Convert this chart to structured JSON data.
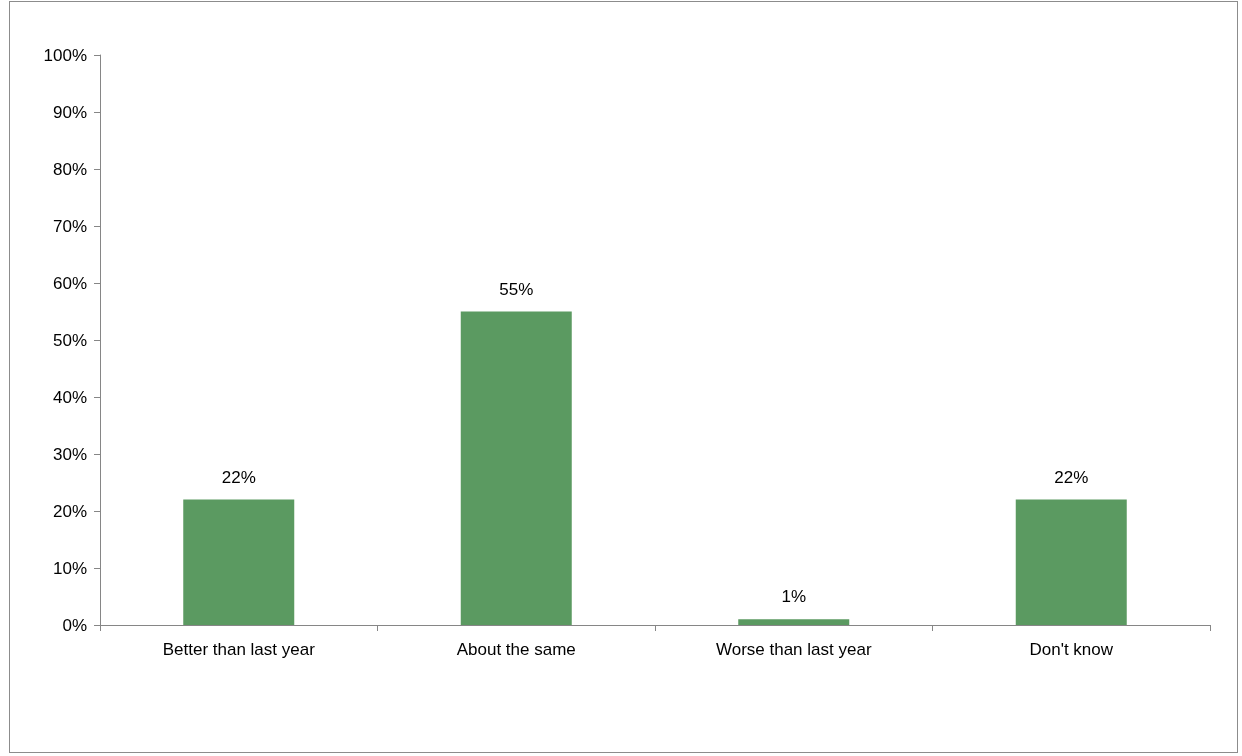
{
  "chart_data": {
    "type": "bar",
    "categories": [
      "Better than last year",
      "About the same",
      "Worse than last year",
      "Don't know"
    ],
    "values": [
      22,
      55,
      1,
      22
    ],
    "color": "#5b9a61",
    "value_labels": [
      "22%",
      "55%",
      "1%",
      "22%"
    ],
    "ylim": [
      0,
      100
    ],
    "yticks": [
      {
        "value": 0,
        "label": "0%"
      },
      {
        "value": 10,
        "label": "10%"
      },
      {
        "value": 20,
        "label": "20%"
      },
      {
        "value": 30,
        "label": "30%"
      },
      {
        "value": 40,
        "label": "40%"
      },
      {
        "value": 50,
        "label": "50%"
      },
      {
        "value": 60,
        "label": "60%"
      },
      {
        "value": 70,
        "label": "70%"
      },
      {
        "value": 80,
        "label": "80%"
      },
      {
        "value": 90,
        "label": "90%"
      },
      {
        "value": 100,
        "label": "100%"
      }
    ],
    "grid": false
  }
}
